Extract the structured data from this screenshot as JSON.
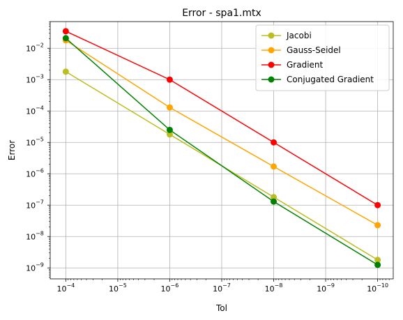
{
  "chart_data": {
    "type": "line",
    "title": "Error - spa1.mtx",
    "xlabel": "Tol",
    "ylabel": "Error",
    "xscale": "log",
    "yscale": "log",
    "x_inverted": true,
    "grid": true,
    "legend_position": "top-right",
    "x": [
      0.0001,
      1e-06,
      1e-08,
      1e-10
    ],
    "xlim_exponents": [
      -3.7,
      -10.3
    ],
    "ylim_exponents": [
      -9.35,
      -1.15
    ],
    "x_ticks": [
      {
        "exp": -4,
        "base": "10",
        "sup": "−4"
      },
      {
        "exp": -5,
        "base": "10",
        "sup": "−5"
      },
      {
        "exp": -6,
        "base": "10",
        "sup": "−6"
      },
      {
        "exp": -7,
        "base": "10",
        "sup": "−7"
      },
      {
        "exp": -8,
        "base": "10",
        "sup": "−8"
      },
      {
        "exp": -9,
        "base": "10",
        "sup": "−9"
      },
      {
        "exp": -10,
        "base": "10",
        "sup": "−10"
      }
    ],
    "y_ticks": [
      {
        "exp": -2,
        "base": "10",
        "sup": "−2"
      },
      {
        "exp": -3,
        "base": "10",
        "sup": "−3"
      },
      {
        "exp": -4,
        "base": "10",
        "sup": "−4"
      },
      {
        "exp": -5,
        "base": "10",
        "sup": "−5"
      },
      {
        "exp": -6,
        "base": "10",
        "sup": "−6"
      },
      {
        "exp": -7,
        "base": "10",
        "sup": "−7"
      },
      {
        "exp": -8,
        "base": "10",
        "sup": "−8"
      },
      {
        "exp": -9,
        "base": "10",
        "sup": "−9"
      }
    ],
    "series": [
      {
        "name": "Jacobi",
        "color": "#bcbd22",
        "values": [
          0.0018,
          1.8e-05,
          1.8e-07,
          1.8e-09
        ]
      },
      {
        "name": "Gauss-Seidel",
        "color": "#ffa500",
        "values": [
          0.018,
          0.00013,
          1.7e-06,
          2.3e-08
        ]
      },
      {
        "name": "Gradient",
        "color": "#ff0000",
        "values": [
          0.035,
          0.001,
          1e-05,
          1e-07
        ]
      },
      {
        "name": "Conjugated Gradient",
        "color": "#008000",
        "values": [
          0.021,
          2.5e-05,
          1.3e-07,
          1.25e-09
        ]
      }
    ]
  }
}
